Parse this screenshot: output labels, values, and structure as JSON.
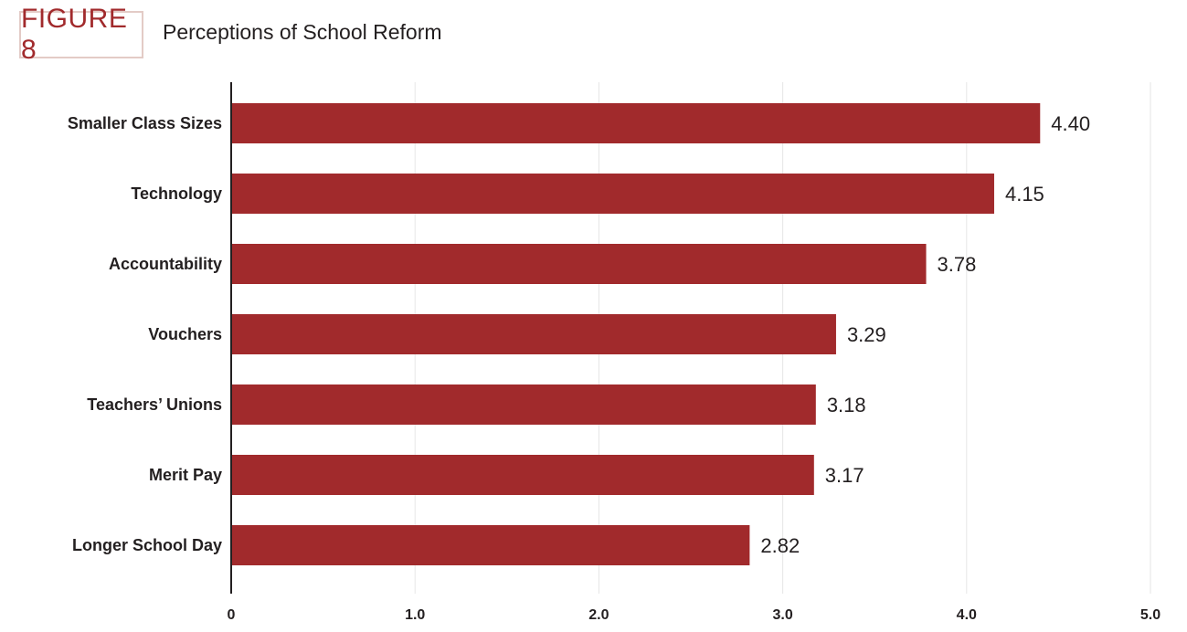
{
  "header": {
    "figure_label": "FIGURE 8",
    "title": "Perceptions of School Reform"
  },
  "colors": {
    "bar": "#a12a2c",
    "badge_text": "#a12a2c",
    "badge_border": "#e3cbc6",
    "grid": "#e6e6e6",
    "axis": "#231f20"
  },
  "chart_data": {
    "type": "bar",
    "orientation": "horizontal",
    "categories": [
      "Smaller Class Sizes",
      "Technology",
      "Accountability",
      "Vouchers",
      "Teachers’ Unions",
      "Merit Pay",
      "Longer School Day"
    ],
    "values": [
      4.4,
      4.15,
      3.78,
      3.29,
      3.18,
      3.17,
      2.82
    ],
    "value_labels": [
      "4.40",
      "4.15",
      "3.78",
      "3.29",
      "3.18",
      "3.17",
      "2.82"
    ],
    "title": "Perceptions of School Reform",
    "xlim": [
      0,
      5
    ],
    "x_ticks": [
      0,
      1,
      2,
      3,
      4,
      5
    ],
    "x_tick_labels": [
      "0",
      "1.0",
      "2.0",
      "3.0",
      "4.0",
      "5.0"
    ],
    "grid": true,
    "legend": "none"
  }
}
